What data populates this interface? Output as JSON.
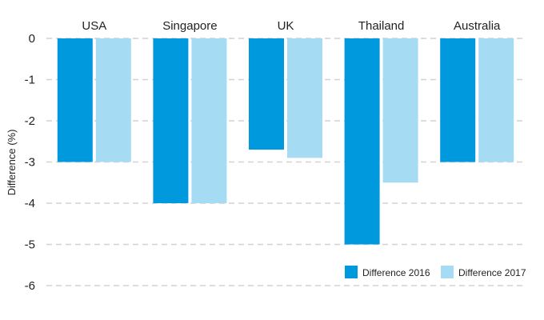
{
  "chart_data": {
    "type": "bar",
    "title": "",
    "xlabel": "",
    "ylabel": "Difference (%)",
    "categories": [
      "USA",
      "Singapore",
      "UK",
      "Thailand",
      "Australia"
    ],
    "series": [
      {
        "name": "Difference 2016",
        "color": "#0099dd",
        "values": [
          -3,
          -4,
          -2.7,
          -5,
          -3
        ]
      },
      {
        "name": "Difference 2017",
        "color": "#a6dcf3",
        "values": [
          -3,
          -4,
          -2.9,
          -3.5,
          -3
        ]
      }
    ],
    "ylim": [
      -6,
      0
    ],
    "yticks": [
      0,
      -1,
      -2,
      -3,
      -4,
      -5,
      -6
    ],
    "ytick_labels": [
      "0",
      "-1",
      "-2",
      "-3",
      "-4",
      "-5",
      "-6"
    ],
    "grid": true,
    "category_labels_position": "top",
    "legend_position": "bottom-right"
  }
}
